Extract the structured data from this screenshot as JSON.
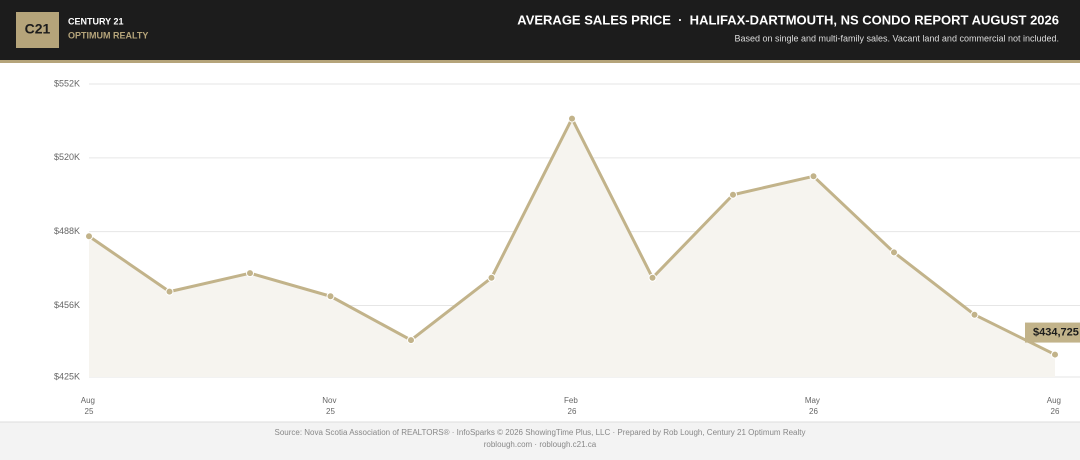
{
  "header": {
    "logo": "C21",
    "brand": "CENTURY 21",
    "office": "OPTIMUM REALTY",
    "title": "AVERAGE SALES PRICE  ·  HALIFAX-DARTMOUTH, NS CONDO REPORT AUGUST 2026",
    "subtitle": "Based on single and multi-family sales. Vacant land and commercial not included."
  },
  "chart_data": {
    "type": "line",
    "categories": [
      "Aug 25",
      null,
      null,
      "Nov 25",
      null,
      null,
      "Feb 26",
      null,
      null,
      "May 26",
      null,
      null,
      "Aug 26"
    ],
    "series": [
      {
        "color": "#c2b38a",
        "values": [
          486000,
          462000,
          470000,
          460000,
          441000,
          468000,
          537000,
          468000,
          504000,
          512000,
          479000,
          452000,
          434725
        ],
        "value_labels": [
          null,
          null,
          null,
          null,
          null,
          null,
          null,
          null,
          null,
          null,
          null,
          null,
          "$434,725"
        ]
      }
    ],
    "ylim": [
      425000,
      552000
    ],
    "yticks": [
      {
        "value": 425000,
        "label": "$425K"
      },
      {
        "value": 456000,
        "label": "$456K"
      },
      {
        "value": 488000,
        "label": "$488K"
      },
      {
        "value": 520000,
        "label": "$520K"
      },
      {
        "value": 552000,
        "label": "$552K"
      }
    ],
    "grid": true
  },
  "footer": {
    "source": "Source: Nova Scotia Association of REALTORS® · InfoSparks © 2026 ShowingTime Plus, LLC · Prepared by Rob Lough, Century 21 Optimum Realty",
    "links": "roblough.com · roblough.c21.ca"
  }
}
